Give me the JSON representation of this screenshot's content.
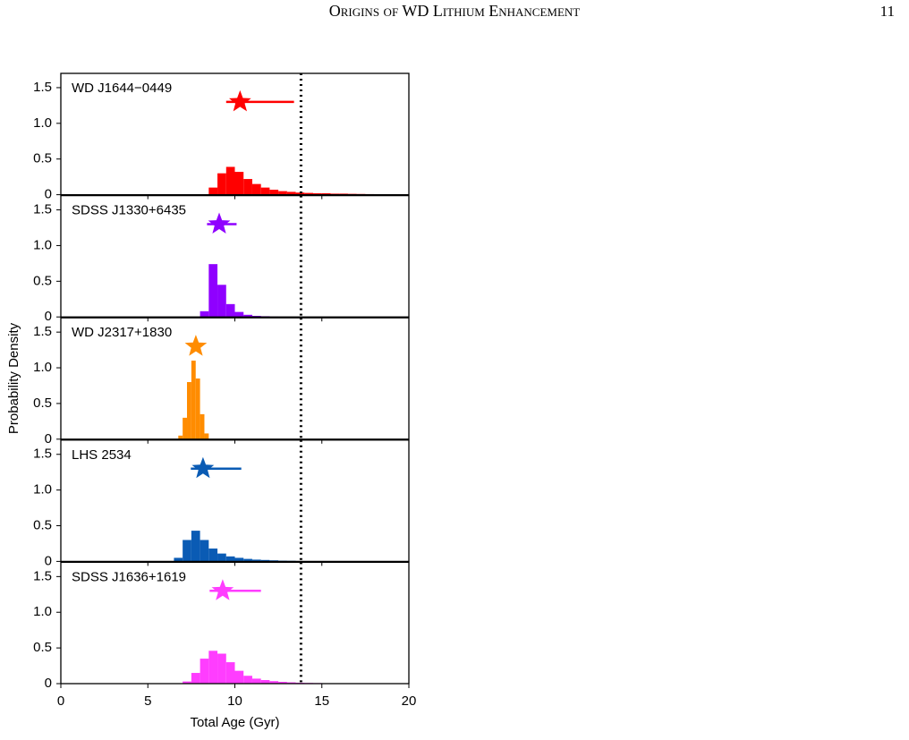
{
  "header": {
    "title": "Origins of WD Lithium Enhancement",
    "page": "11"
  },
  "figure": {
    "ylabel": "Probability Density"
  },
  "chart_data": [
    {
      "type": "histogram",
      "label": "WD J1644−0449",
      "color": "#ff0000",
      "bins": [
        8.5,
        9,
        9.5,
        10,
        10.5,
        11,
        11.5,
        12,
        12.5,
        13,
        13.5,
        14,
        14.5,
        15,
        15.5,
        16,
        16.5,
        17,
        17.5,
        18,
        18.5
      ],
      "values": [
        0.1,
        0.3,
        0.39,
        0.32,
        0.22,
        0.15,
        0.1,
        0.07,
        0.05,
        0.04,
        0.03,
        0.025,
        0.02,
        0.02,
        0.015,
        0.015,
        0.012,
        0.01,
        0.008,
        0.004
      ],
      "marker": {
        "x": 10.3,
        "y": 1.3,
        "xerr": [
          0.8,
          3.1
        ]
      },
      "vline": 13.8,
      "xlim": [
        0,
        20
      ],
      "xticks": [
        0,
        5,
        10,
        15,
        20
      ],
      "ylim": [
        0,
        1.7
      ],
      "yticks": [
        0,
        0.5,
        {
          "value": 1,
          "label": "1.0"
        },
        1.5
      ]
    },
    {
      "type": "histogram",
      "label": "SDSS J1330+6435",
      "color": "#8f00ff",
      "bins": [
        8,
        8.5,
        9,
        9.5,
        10,
        10.5,
        11,
        11.5,
        12,
        12.5,
        13,
        13.5
      ],
      "values": [
        0.08,
        0.74,
        0.45,
        0.18,
        0.07,
        0.03,
        0.015,
        0.01,
        0.005,
        0.003,
        0.002
      ],
      "marker": {
        "x": 9.1,
        "y": 1.3,
        "xerr": [
          0.7,
          1.0
        ]
      },
      "vline": 13.8,
      "xlim": [
        0,
        20
      ],
      "xticks": [
        0,
        5,
        10,
        15,
        20
      ],
      "ylim": [
        0,
        1.7
      ],
      "yticks": [
        0,
        0.5,
        {
          "value": 1,
          "label": "1.0"
        },
        1.5
      ]
    },
    {
      "type": "histogram",
      "label": "WD J2317+1830",
      "color": "#ff8c00",
      "bins": [
        6.75,
        7,
        7.25,
        7.5,
        7.75,
        8,
        8.25,
        8.5
      ],
      "values": [
        0.05,
        0.3,
        0.8,
        1.1,
        0.85,
        0.35,
        0.08
      ],
      "marker": {
        "x": 7.76,
        "y": 1.3,
        "xerr": [
          0.1,
          0.1
        ]
      },
      "vline": 13.8,
      "xlim": [
        0,
        20
      ],
      "xticks": [
        0,
        5,
        10,
        15,
        20
      ],
      "ylim": [
        0,
        1.7
      ],
      "yticks": [
        0,
        0.5,
        {
          "value": 1,
          "label": "1.0"
        },
        1.5
      ]
    },
    {
      "type": "histogram",
      "label": "LHS 2534",
      "color": "#0a5bb4",
      "bins": [
        6.5,
        7,
        7.5,
        8,
        8.5,
        9,
        9.5,
        10,
        10.5,
        11,
        11.5,
        12,
        12.5,
        13,
        13.5,
        14
      ],
      "values": [
        0.05,
        0.3,
        0.43,
        0.3,
        0.18,
        0.11,
        0.07,
        0.05,
        0.035,
        0.025,
        0.02,
        0.015,
        0.01,
        0.008,
        0.005
      ],
      "marker": {
        "x": 8.17,
        "y": 1.3,
        "xerr": [
          0.7,
          2.2
        ]
      },
      "vline": 13.8,
      "xlim": [
        0,
        20
      ],
      "xticks": [
        0,
        5,
        10,
        15,
        20
      ],
      "ylim": [
        0,
        1.7
      ],
      "yticks": [
        0,
        0.5,
        {
          "value": 1,
          "label": "1.0"
        },
        1.5
      ]
    },
    {
      "type": "histogram",
      "label": "SDSS J1636+1619",
      "color": "#ff3dff",
      "bins": [
        7,
        7.5,
        8,
        8.5,
        9,
        9.5,
        10,
        10.5,
        11,
        11.5,
        12,
        12.5,
        13,
        13.5,
        14,
        14.5,
        15,
        15.5,
        16,
        16.5,
        17
      ],
      "values": [
        0.03,
        0.15,
        0.35,
        0.46,
        0.42,
        0.3,
        0.18,
        0.11,
        0.07,
        0.05,
        0.035,
        0.025,
        0.018,
        0.013,
        0.01,
        0.008,
        0.006,
        0.005,
        0.004,
        0.003
      ],
      "marker": {
        "x": 9.3,
        "y": 1.3,
        "xerr": [
          0.75,
          2.2
        ]
      },
      "vline": 13.8,
      "xlim": [
        0,
        20
      ],
      "xticks": [
        0,
        5,
        10,
        15,
        20
      ],
      "ylim": [
        0,
        1.7
      ],
      "yticks": [
        0,
        0.5,
        {
          "value": 1,
          "label": "1.0"
        },
        1.5
      ],
      "xlabel": "Total Age (Gyr)"
    }
  ]
}
